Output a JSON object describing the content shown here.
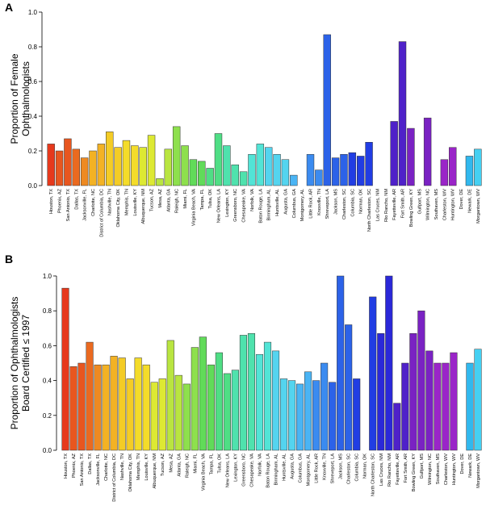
{
  "chart_data": [
    {
      "type": "bar",
      "panel": "A",
      "ylabel_lines": [
        "Proportion of Female",
        "Ophthalmologists"
      ],
      "ylim": [
        0,
        1.0
      ],
      "yticks": [
        "0.0",
        "0.2",
        "0.4",
        "0.6",
        "0.8",
        "1.0"
      ],
      "grid": false,
      "categories": [
        "Houston, TX",
        "Phoenix, AZ",
        "San Antonio, TX",
        "Dallas, TX",
        "Jacksonville, FL",
        "Charlotte, NC",
        "District of Columbia, DC",
        "Nashville, TN",
        "Oklahoma City, OK",
        "Memphis, TN",
        "Louisville, KY",
        "Albuquerque, NM",
        "Tucson, AZ",
        "Mesa, AZ",
        "Atlanta, GA",
        "Raleigh, NC",
        "Miami, FL",
        "Virginia Beach, VA",
        "Tampa, FL",
        "Tulsa, OK",
        "New Orleans, LA",
        "Lexington, KY",
        "Greensboro, NC",
        "Chesapeake, VA",
        "Norfolk, VA",
        "Baton Rouge, LA",
        "Birmingham, AL",
        "Huntsville, AL",
        "Augusta, GA",
        "Columbus, GA",
        "Montgomery, AL",
        "Little Rock, AR",
        "Knoxville, TN",
        "Shreveport, LA",
        "Jackson, MS",
        "Charleston, SC",
        "Columbia, SC",
        "Norman, OK",
        "North Charleston, SC",
        "Las Cruces, NM",
        "Rio Rancho, NM",
        "Fayetteville, AR",
        "Fort Smith, AR",
        "Bowling Green, KY",
        "Gulfport, MS",
        "Wilmington, NC",
        "Southaven, MS",
        "Charleston, WV",
        "Huntington, WV",
        "Dover, DE",
        "Newark, DE",
        "Morgantown, WV"
      ],
      "values": [
        0.24,
        0.2,
        0.27,
        0.21,
        0.16,
        0.2,
        0.24,
        0.31,
        0.22,
        0.26,
        0.23,
        0.22,
        0.29,
        0.04,
        0.21,
        0.34,
        0.23,
        0.15,
        0.14,
        0.1,
        0.3,
        0.23,
        0.12,
        0.08,
        0.18,
        0.24,
        0.22,
        0.18,
        0.15,
        0.06,
        0.0,
        0.18,
        0.09,
        0.87,
        0.16,
        0.18,
        0.19,
        0.17,
        0.25,
        0.0,
        0.0,
        0.37,
        0.83,
        0.33,
        0.0,
        0.39,
        0.0,
        0.15,
        0.22,
        0.0,
        0.17,
        0.21
      ]
    },
    {
      "type": "bar",
      "panel": "B",
      "ylabel_lines": [
        "Proportion of Ophthalmologists",
        "Board Certified ≤ 1997"
      ],
      "ylim": [
        0,
        1.0
      ],
      "yticks": [
        "0.0",
        "0.2",
        "0.4",
        "0.6",
        "0.8",
        "1.0"
      ],
      "grid": false,
      "categories": [
        "Houston, TX",
        "Phoenix, AZ",
        "San Antonio, TX",
        "Dallas, TX",
        "Jacksonville, FL",
        "Charlotte, NC",
        "District of Columbia, DC",
        "Nashville, TN",
        "Oklahoma City, OK",
        "Memphis, TN",
        "Louisville, KY",
        "Albuquerque, NM",
        "Tucson, AZ",
        "Mesa, AZ",
        "Atlanta, GA",
        "Raleigh, NC",
        "Miami, FL",
        "Virginia Beach, VA",
        "Tampa, FL",
        "Tulsa, OK",
        "New Orleans, LA",
        "Lexington, KY",
        "Greensboro, NC",
        "Chesapeake, VA",
        "Norfolk, VA",
        "Baton Rouge, LA",
        "Birmingham, AL",
        "Huntsville, AL",
        "Augusta, GA",
        "Columbus, GA",
        "Montgomery, AL",
        "Little Rock, AR",
        "Knoxville, TN",
        "Shreveport, LA",
        "Jackson, MS",
        "Charleston, SC",
        "Columbia, SC",
        "Norman, OK",
        "North Charleston, SC",
        "Las Cruces, NM",
        "Rio Rancho, NM",
        "Fayetteville, AR",
        "Fort Smith, AR",
        "Bowling Green, KY",
        "Gulfport, MS",
        "Wilmington, NC",
        "Southaven, MS",
        "Charleston, WV",
        "Huntington, WV",
        "Dover, DE",
        "Newark, DE",
        "Morgantown, WV"
      ],
      "values": [
        0.93,
        0.48,
        0.5,
        0.62,
        0.49,
        0.49,
        0.54,
        0.53,
        0.41,
        0.53,
        0.49,
        0.39,
        0.41,
        0.63,
        0.43,
        0.38,
        0.59,
        0.65,
        0.49,
        0.56,
        0.44,
        0.46,
        0.66,
        0.67,
        0.55,
        0.62,
        0.57,
        0.41,
        0.4,
        0.38,
        0.45,
        0.4,
        0.5,
        0.39,
        1.0,
        0.72,
        0.41,
        0.0,
        0.88,
        0.67,
        1.0,
        0.27,
        0.5,
        0.67,
        0.8,
        0.57,
        0.5,
        0.5,
        0.56,
        0.0,
        0.5,
        0.58
      ]
    }
  ],
  "colors": [
    "#e6391c",
    "#e8561f",
    "#ea6a20",
    "#ee8a22",
    "#f3b224",
    "#f4cc25",
    "#f4dc2a",
    "#dde933",
    "#b9e540",
    "#8ee04d",
    "#61db59",
    "#4fde85",
    "#4fe2ad",
    "#52e4d6",
    "#54d4ef",
    "#4ab4f4",
    "#3b8bf0",
    "#2c62e8",
    "#213de3",
    "#2b28d9",
    "#4f21c9",
    "#7a22c3",
    "#9a25c8",
    "#4ea0f0",
    "#31b8ee",
    "#45d0f2"
  ],
  "color_order": [
    0,
    1,
    1,
    2,
    3,
    4,
    4,
    5,
    5,
    6,
    6,
    7,
    7,
    8,
    8,
    9,
    9,
    10,
    10,
    11,
    11,
    12,
    12,
    12,
    13,
    13,
    14,
    14,
    14,
    15,
    15,
    16,
    16,
    17,
    17,
    17,
    18,
    18,
    18,
    19,
    19,
    20,
    20,
    21,
    21,
    21,
    22,
    22,
    22,
    23,
    24,
    25
  ]
}
